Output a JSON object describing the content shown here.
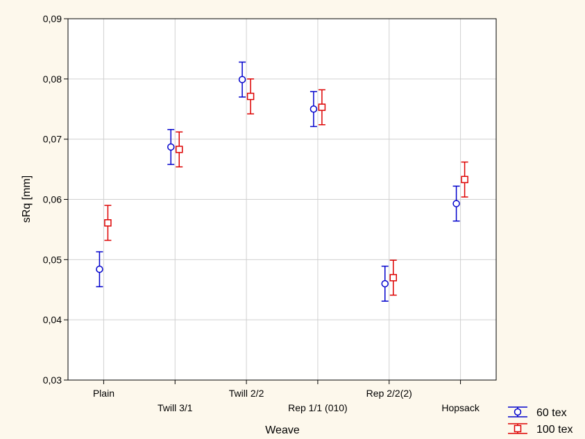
{
  "chart_data": {
    "type": "scatter",
    "title": "",
    "xlabel": "Weave",
    "ylabel": "sRq  [mm]",
    "ylim": [
      0.03,
      0.09
    ],
    "yticks": [
      0.03,
      0.04,
      0.05,
      0.06,
      0.07,
      0.08,
      0.09
    ],
    "ytick_labels": [
      "0,03",
      "0,04",
      "0,05",
      "0,06",
      "0,07",
      "0,08",
      "0,09"
    ],
    "grid": true,
    "legend_position": "bottom-right",
    "categories": [
      "Plain",
      "Twill 3/1",
      "Twill 2/2",
      "Rep 1/1 (010)",
      "Rep 2/2(2)",
      "Hopsack"
    ],
    "series": [
      {
        "name": "60 tex",
        "marker": "circle",
        "color": "#0000cc",
        "values": [
          0.0484,
          0.0687,
          0.0799,
          0.075,
          0.046,
          0.0593
        ],
        "lower": [
          0.0455,
          0.0658,
          0.077,
          0.0721,
          0.0431,
          0.0564
        ],
        "upper": [
          0.0513,
          0.0716,
          0.0828,
          0.0779,
          0.0489,
          0.0622
        ]
      },
      {
        "name": "100 tex",
        "marker": "square",
        "color": "#dd0000",
        "values": [
          0.0561,
          0.0683,
          0.0771,
          0.0753,
          0.047,
          0.0633
        ],
        "lower": [
          0.0532,
          0.0654,
          0.0742,
          0.0724,
          0.0441,
          0.0604
        ],
        "upper": [
          0.059,
          0.0712,
          0.08,
          0.0782,
          0.0499,
          0.0662
        ]
      }
    ]
  }
}
